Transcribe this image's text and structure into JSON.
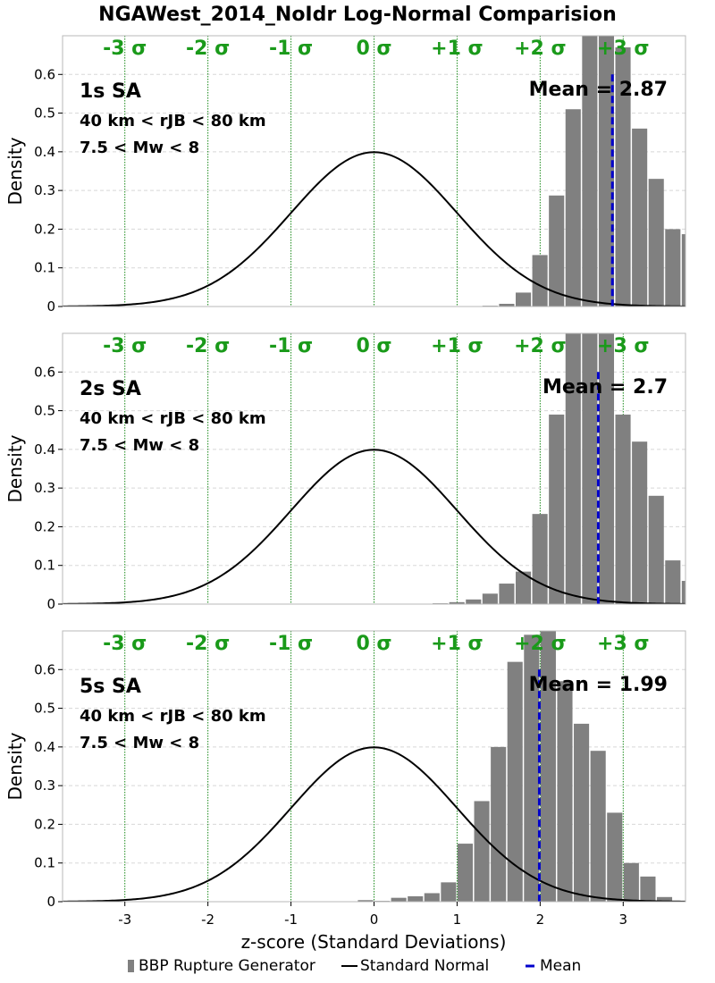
{
  "chart_data": {
    "type": "bar",
    "title": "NGAWest_2014_NoIdr Log-Normal Comparision",
    "xlabel": "z-score (Standard Deviations)",
    "ylabel": "Density",
    "xlim": [
      -3.75,
      3.75
    ],
    "ylim": [
      0,
      0.7
    ],
    "xticks": [
      -3,
      -2,
      -1,
      0,
      1,
      2,
      3
    ],
    "xtick_labels": [
      "-3",
      "-2",
      "-1",
      "0",
      "1",
      "2",
      "3"
    ],
    "yticks": [
      0,
      0.1,
      0.2,
      0.3,
      0.4,
      0.5,
      0.6
    ],
    "ytick_labels": [
      "0",
      "0.1",
      "0.2",
      "0.3",
      "0.4",
      "0.5",
      "0.6"
    ],
    "sigma_labels": [
      "-3 σ",
      "-2 σ",
      "-1 σ",
      "0 σ",
      "+1 σ",
      "+2 σ",
      "+3 σ"
    ],
    "sigma_positions": [
      -3,
      -2,
      -1,
      0,
      1,
      2,
      3
    ],
    "grid": true,
    "legend_position": "bottom",
    "legend": [
      {
        "label": "BBP Rupture Generator",
        "kind": "bar",
        "color": "#808080"
      },
      {
        "label": "Standard Normal",
        "kind": "line",
        "color": "#000000"
      },
      {
        "label": "Mean",
        "kind": "dashed",
        "color": "#0000cc"
      }
    ],
    "bin_width": 0.2,
    "panels": [
      {
        "title": "1s SA",
        "lines": [
          "40 km < rJB < 80 km",
          "7.5 < Mw < 8"
        ],
        "mean_label": "Mean = 2.87",
        "mean": 2.87,
        "bins_left": [
          1.3,
          1.5,
          1.7,
          1.9,
          2.1,
          2.3,
          2.5,
          2.7,
          2.9,
          3.1,
          3.3,
          3.5,
          3.7
        ],
        "values": [
          0.002,
          0.007,
          0.036,
          0.133,
          0.287,
          0.51,
          0.74,
          0.74,
          0.67,
          0.46,
          0.33,
          0.2,
          0.187
        ]
      },
      {
        "title": "2s SA",
        "lines": [
          "40 km < rJB < 80 km",
          "7.5 < Mw < 8"
        ],
        "mean_label": "Mean = 2.7",
        "mean": 2.7,
        "bins_left": [
          0.7,
          0.9,
          1.1,
          1.3,
          1.5,
          1.7,
          1.9,
          2.1,
          2.3,
          2.5,
          2.7,
          2.9,
          3.1,
          3.3,
          3.5,
          3.7
        ],
        "values": [
          0.002,
          0.005,
          0.012,
          0.027,
          0.053,
          0.084,
          0.233,
          0.49,
          0.74,
          0.74,
          0.74,
          0.49,
          0.42,
          0.28,
          0.113,
          0.06
        ]
      },
      {
        "title": "5s SA",
        "lines": [
          "40 km < rJB < 80 km",
          "7.5 < Mw < 8"
        ],
        "mean_label": "Mean = 1.99",
        "mean": 1.99,
        "bins_left": [
          -0.2,
          0.0,
          0.2,
          0.4,
          0.6,
          0.8,
          1.0,
          1.2,
          1.4,
          1.6,
          1.8,
          2.0,
          2.2,
          2.4,
          2.6,
          2.8,
          3.0,
          3.2,
          3.4,
          3.6
        ],
        "values": [
          0.004,
          0.002,
          0.01,
          0.014,
          0.022,
          0.05,
          0.15,
          0.26,
          0.4,
          0.62,
          0.69,
          0.74,
          0.57,
          0.46,
          0.39,
          0.23,
          0.1,
          0.065,
          0.012,
          0.002
        ]
      }
    ]
  }
}
